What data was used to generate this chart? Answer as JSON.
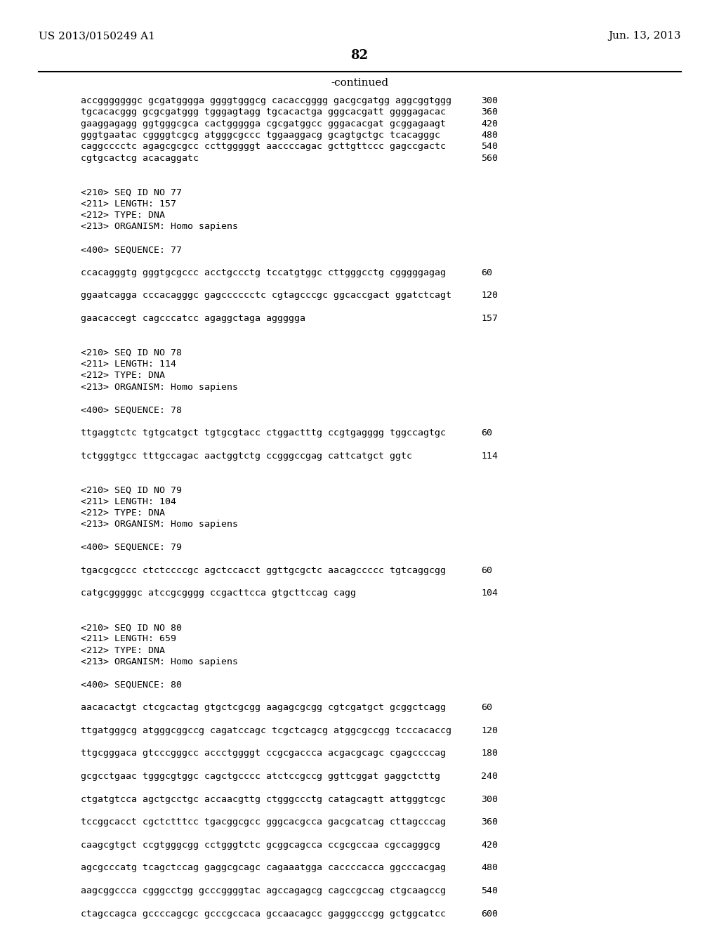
{
  "header_left": "US 2013/0150249 A1",
  "header_right": "Jun. 13, 2013",
  "page_number": "82",
  "continued_label": "-continued",
  "background_color": "#ffffff",
  "text_color": "#000000",
  "lines": [
    {
      "text": "accgggggggc gcgatgggga ggggtgggcg cacaccgggg gacgcgatgg aggcggtggg",
      "num": "300",
      "style": "seq"
    },
    {
      "text": "tgcacacggg gcgcgatggg tgggagtagg tgcacactga gggcacgatt ggggagacac",
      "num": "360",
      "style": "seq"
    },
    {
      "text": "gaaggagagg ggtgggcgca cactggggga cgcgatggcc gggacacgat gcggagaagt",
      "num": "420",
      "style": "seq"
    },
    {
      "text": "gggtgaatac cggggtcgcg atgggcgccc tggaaggacg gcagtgctgc tcacagggc",
      "num": "480",
      "style": "seq"
    },
    {
      "text": "caggcccctc agagcgcgcc ccttgggggt aaccccagac gcttgttccc gagccgactc",
      "num": "540",
      "style": "seq"
    },
    {
      "text": "cgtgcactcg acacaggatc",
      "num": "560",
      "style": "seq"
    },
    {
      "text": "",
      "num": "",
      "style": "blank"
    },
    {
      "text": "",
      "num": "",
      "style": "blank"
    },
    {
      "text": "<210> SEQ ID NO 77",
      "num": "",
      "style": "meta"
    },
    {
      "text": "<211> LENGTH: 157",
      "num": "",
      "style": "meta"
    },
    {
      "text": "<212> TYPE: DNA",
      "num": "",
      "style": "meta"
    },
    {
      "text": "<213> ORGANISM: Homo sapiens",
      "num": "",
      "style": "meta"
    },
    {
      "text": "",
      "num": "",
      "style": "blank"
    },
    {
      "text": "<400> SEQUENCE: 77",
      "num": "",
      "style": "meta"
    },
    {
      "text": "",
      "num": "",
      "style": "blank"
    },
    {
      "text": "ccacagggtg gggtgcgccc acctgccctg tccatgtggc cttgggcctg cgggggagag",
      "num": "60",
      "style": "seq"
    },
    {
      "text": "",
      "num": "",
      "style": "blank"
    },
    {
      "text": "ggaatcagga cccacagggc gagcccccctc cgtagcccgc ggcaccgact ggatctcagt",
      "num": "120",
      "style": "seq"
    },
    {
      "text": "",
      "num": "",
      "style": "blank"
    },
    {
      "text": "gaacaccegt cagcccatcc agaggctaga aggggga",
      "num": "157",
      "style": "seq"
    },
    {
      "text": "",
      "num": "",
      "style": "blank"
    },
    {
      "text": "",
      "num": "",
      "style": "blank"
    },
    {
      "text": "<210> SEQ ID NO 78",
      "num": "",
      "style": "meta"
    },
    {
      "text": "<211> LENGTH: 114",
      "num": "",
      "style": "meta"
    },
    {
      "text": "<212> TYPE: DNA",
      "num": "",
      "style": "meta"
    },
    {
      "text": "<213> ORGANISM: Homo sapiens",
      "num": "",
      "style": "meta"
    },
    {
      "text": "",
      "num": "",
      "style": "blank"
    },
    {
      "text": "<400> SEQUENCE: 78",
      "num": "",
      "style": "meta"
    },
    {
      "text": "",
      "num": "",
      "style": "blank"
    },
    {
      "text": "ttgaggtctc tgtgcatgct tgtgcgtacc ctggactttg ccgtgagggg tggccagtgc",
      "num": "60",
      "style": "seq"
    },
    {
      "text": "",
      "num": "",
      "style": "blank"
    },
    {
      "text": "tctgggtgcc tttgccagac aactggtctg ccgggccgag cattcatgct ggtc",
      "num": "114",
      "style": "seq"
    },
    {
      "text": "",
      "num": "",
      "style": "blank"
    },
    {
      "text": "",
      "num": "",
      "style": "blank"
    },
    {
      "text": "<210> SEQ ID NO 79",
      "num": "",
      "style": "meta"
    },
    {
      "text": "<211> LENGTH: 104",
      "num": "",
      "style": "meta"
    },
    {
      "text": "<212> TYPE: DNA",
      "num": "",
      "style": "meta"
    },
    {
      "text": "<213> ORGANISM: Homo sapiens",
      "num": "",
      "style": "meta"
    },
    {
      "text": "",
      "num": "",
      "style": "blank"
    },
    {
      "text": "<400> SEQUENCE: 79",
      "num": "",
      "style": "meta"
    },
    {
      "text": "",
      "num": "",
      "style": "blank"
    },
    {
      "text": "tgacgcgccc ctctccccgc agctccacct ggttgcgctc aacagccccc tgtcaggcgg",
      "num": "60",
      "style": "seq"
    },
    {
      "text": "",
      "num": "",
      "style": "blank"
    },
    {
      "text": "catgcgggggc atccgcgggg ccgacttcca gtgcttccag cagg",
      "num": "104",
      "style": "seq"
    },
    {
      "text": "",
      "num": "",
      "style": "blank"
    },
    {
      "text": "",
      "num": "",
      "style": "blank"
    },
    {
      "text": "<210> SEQ ID NO 80",
      "num": "",
      "style": "meta"
    },
    {
      "text": "<211> LENGTH: 659",
      "num": "",
      "style": "meta"
    },
    {
      "text": "<212> TYPE: DNA",
      "num": "",
      "style": "meta"
    },
    {
      "text": "<213> ORGANISM: Homo sapiens",
      "num": "",
      "style": "meta"
    },
    {
      "text": "",
      "num": "",
      "style": "blank"
    },
    {
      "text": "<400> SEQUENCE: 80",
      "num": "",
      "style": "meta"
    },
    {
      "text": "",
      "num": "",
      "style": "blank"
    },
    {
      "text": "aacacactgt ctcgcactag gtgctcgcgg aagagcgcgg cgtcgatgct gcggctcagg",
      "num": "60",
      "style": "seq"
    },
    {
      "text": "",
      "num": "",
      "style": "blank"
    },
    {
      "text": "ttgatgggcg atgggcggccg cagatccagc tcgctcagcg atggcgccgg tcccacaccg",
      "num": "120",
      "style": "seq"
    },
    {
      "text": "",
      "num": "",
      "style": "blank"
    },
    {
      "text": "ttgcgggaca gtcccgggcc accctggggt ccgcgaccca acgacgcagc cgagccccag",
      "num": "180",
      "style": "seq"
    },
    {
      "text": "",
      "num": "",
      "style": "blank"
    },
    {
      "text": "gcgcctgaac tgggcgtggc cagctgcccc atctccgccg ggttcggat gaggctcttg",
      "num": "240",
      "style": "seq"
    },
    {
      "text": "",
      "num": "",
      "style": "blank"
    },
    {
      "text": "ctgatgtcca agctgcctgc accaacgttg ctgggccctg catagcagtt attgggtcgc",
      "num": "300",
      "style": "seq"
    },
    {
      "text": "",
      "num": "",
      "style": "blank"
    },
    {
      "text": "tccggcacct cgctctttcc tgacggcgcc gggcacgcca gacgcatcag cttagcccag",
      "num": "360",
      "style": "seq"
    },
    {
      "text": "",
      "num": "",
      "style": "blank"
    },
    {
      "text": "caagcgtgct ccgtgggcgg cctgggtctc gcggcagcca ccgcgccaa cgccagggcg",
      "num": "420",
      "style": "seq"
    },
    {
      "text": "",
      "num": "",
      "style": "blank"
    },
    {
      "text": "agcgcccatg tcagctccag gaggcgcagc cagaaatgga caccccacca ggcccacgag",
      "num": "480",
      "style": "seq"
    },
    {
      "text": "",
      "num": "",
      "style": "blank"
    },
    {
      "text": "aagcggccca cgggcctgg gcccggggtac agccagagcg cagccgccag ctgcaagccg",
      "num": "540",
      "style": "seq"
    },
    {
      "text": "",
      "num": "",
      "style": "blank"
    },
    {
      "text": "ctagccagca gccccagcgc gcccgccaca gccaacagcc gagggcccgg gctggcatcc",
      "num": "600",
      "style": "seq"
    }
  ]
}
